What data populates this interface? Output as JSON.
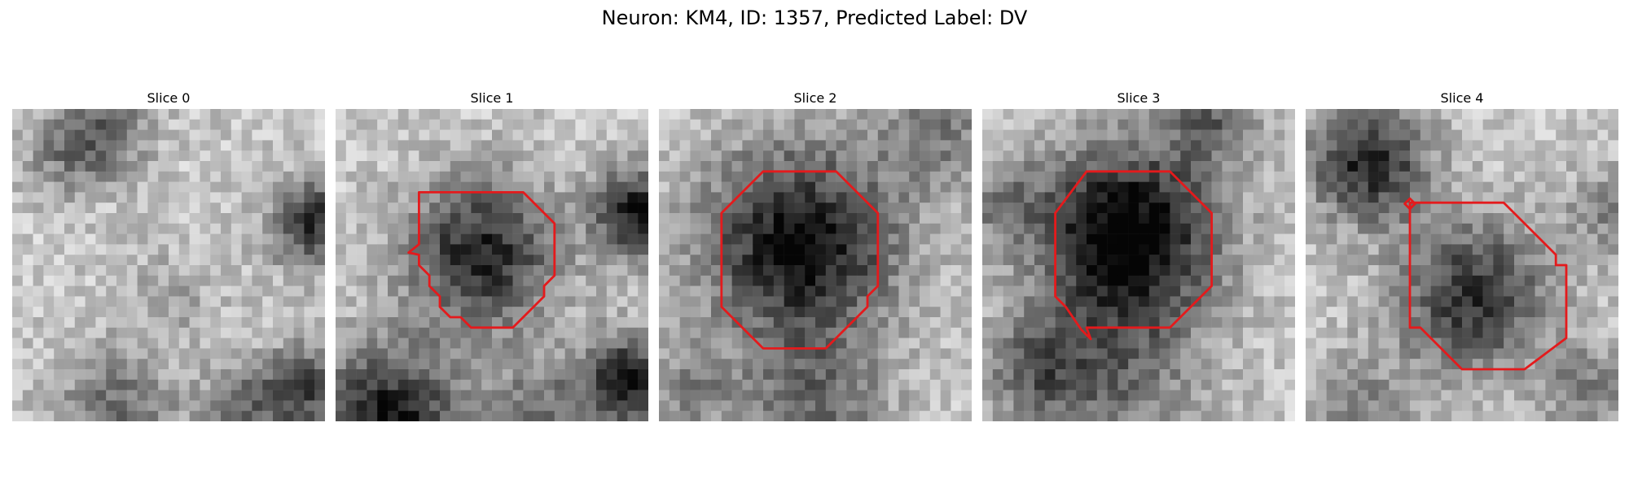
{
  "figure": {
    "title": "Neuron: KM4, ID: 1357, Predicted Label: DV"
  },
  "panels": [
    {
      "title": "Slice 0"
    },
    {
      "title": "Slice 1"
    },
    {
      "title": "Slice 2"
    },
    {
      "title": "Slice 3"
    },
    {
      "title": "Slice 4"
    }
  ],
  "contour_color": "#e41a1c"
}
